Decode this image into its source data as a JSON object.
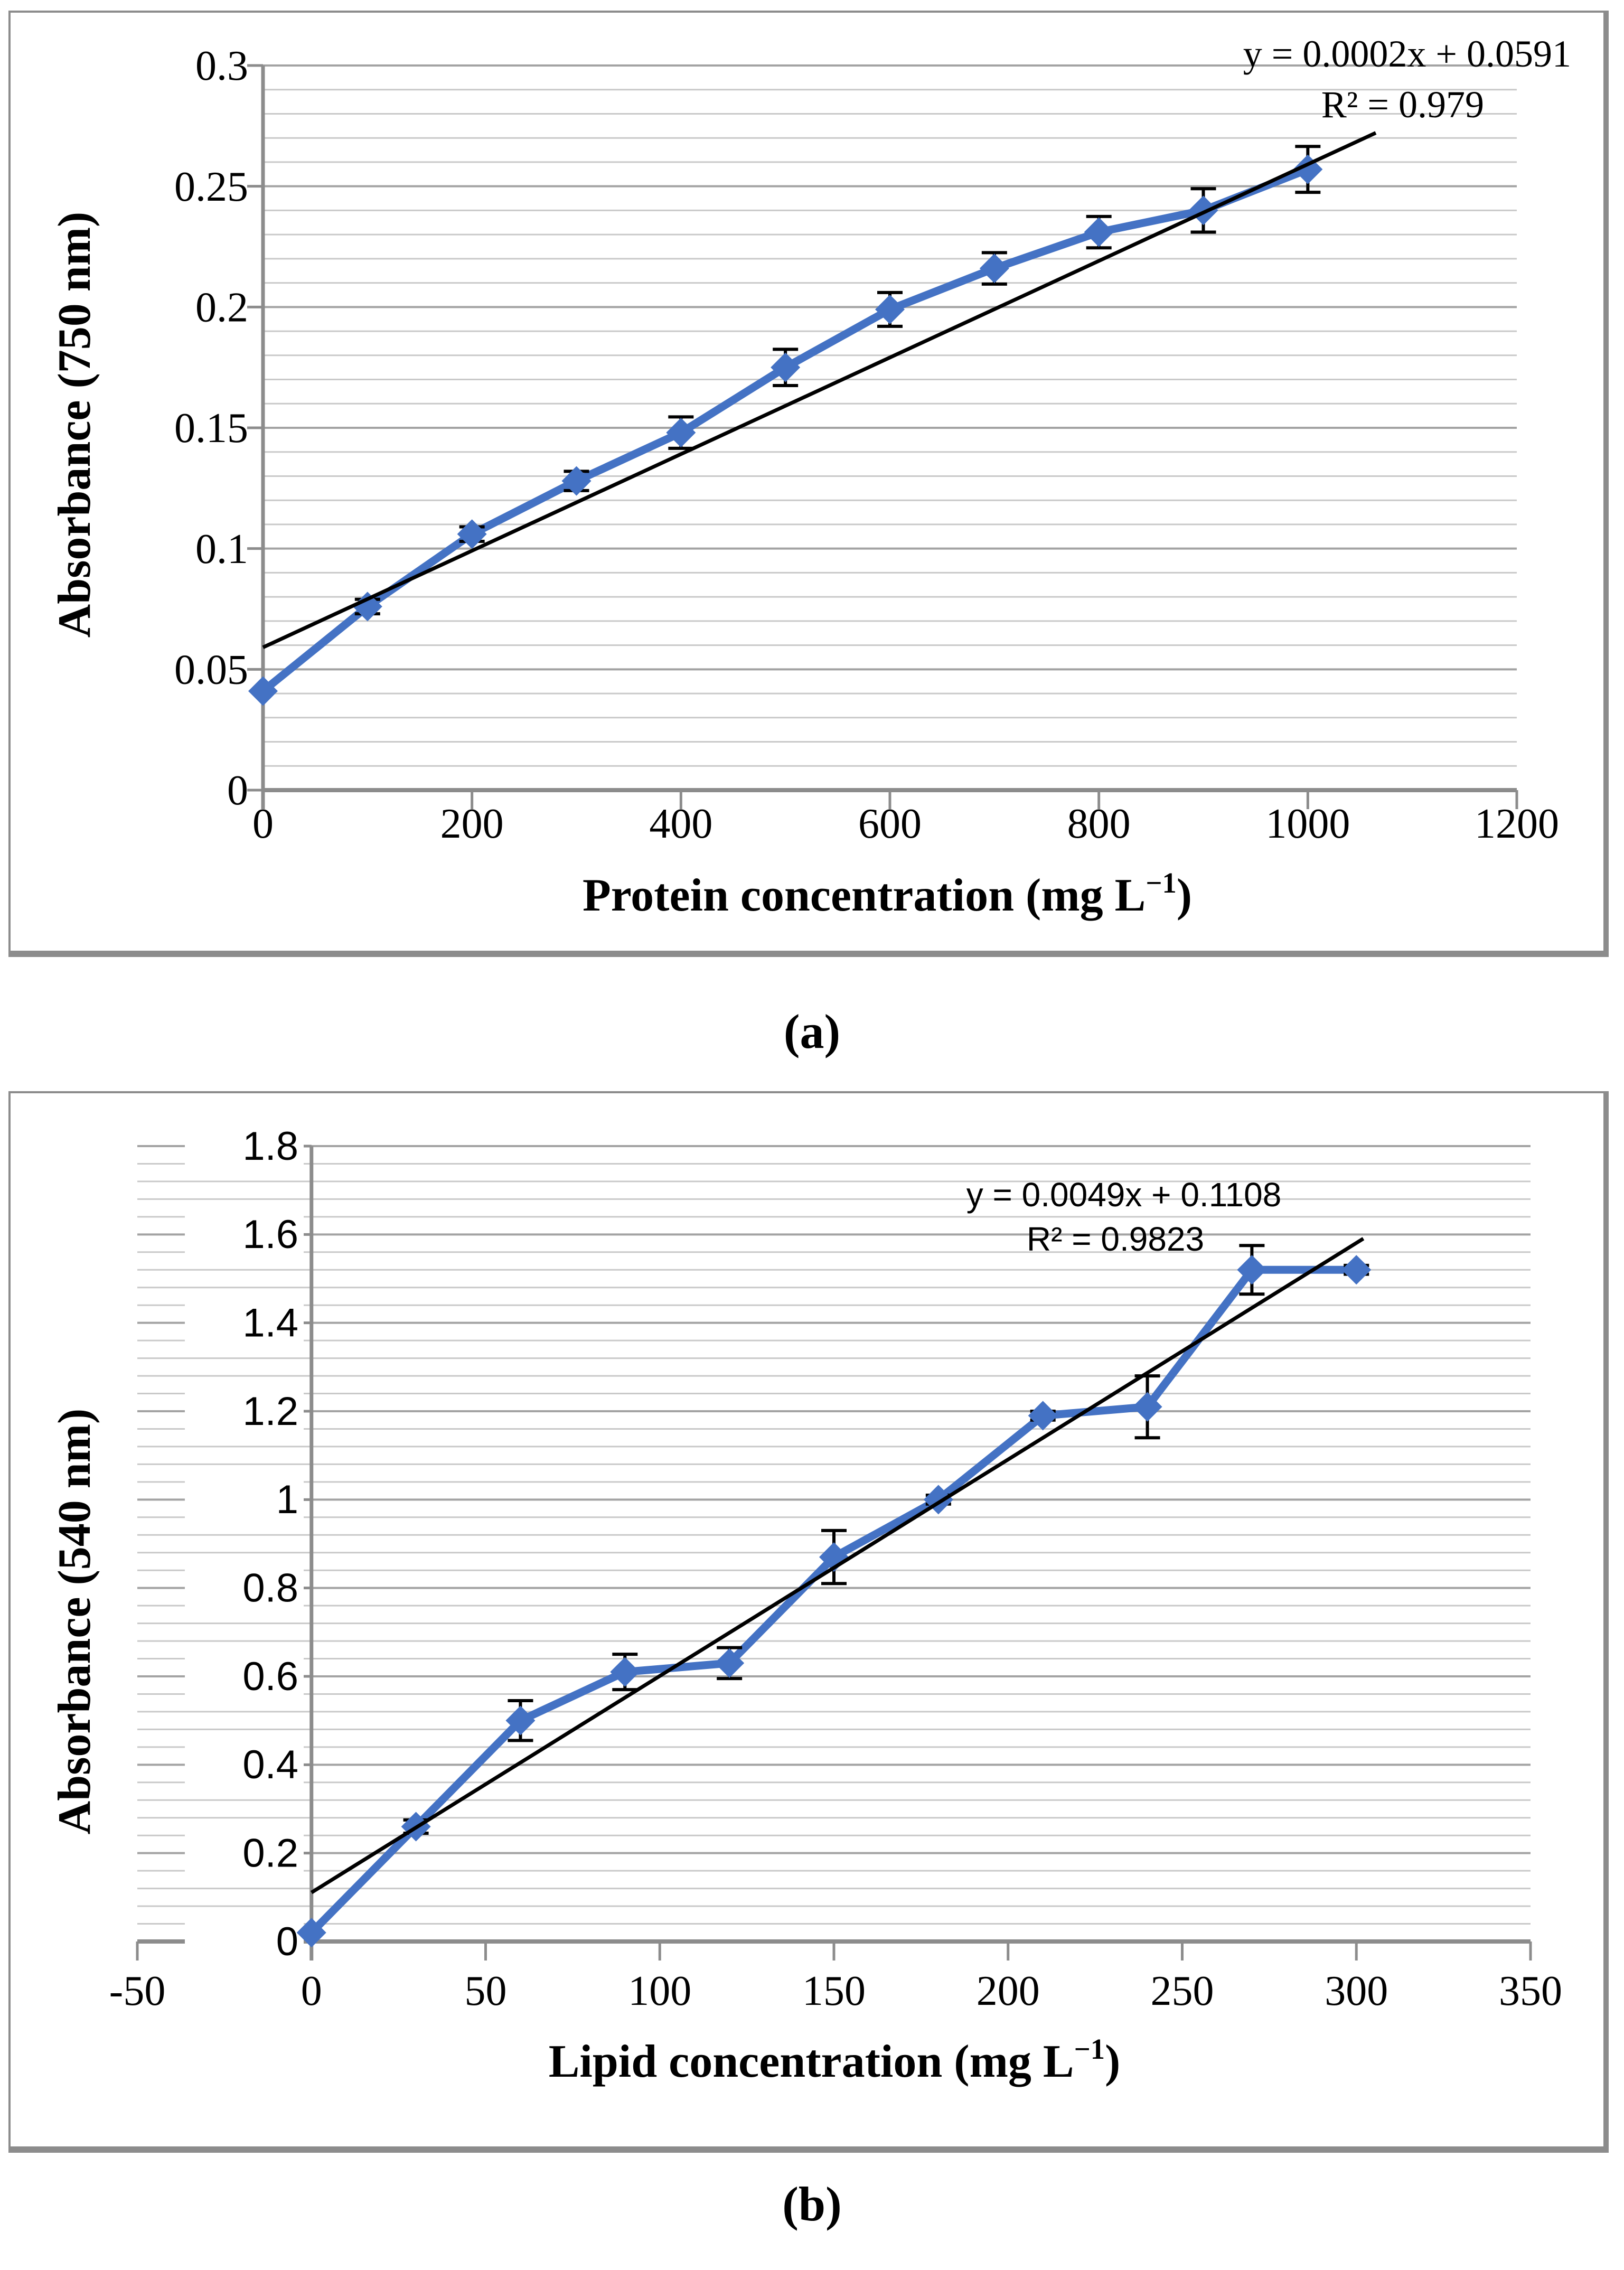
{
  "figure": {
    "caption_a": "(a)",
    "caption_b": "(b)"
  },
  "colors": {
    "series_blue": "#4472C4",
    "trendline_black": "#000000",
    "error_bar_black": "#000000",
    "grid_major": "#a3a3a3",
    "grid_minor": "#c9c9c9",
    "axis_line": "#8c8c8c",
    "panel_border": "#8c8c8c",
    "text_black": "#000000",
    "label_background": "#ffffff"
  },
  "chart_data": [
    {
      "type": "line",
      "marker": "diamond",
      "series_name": "protein-calibration",
      "xlabel": "Protein concentration (mg L⁻¹)",
      "ylabel": "Absorbance (750 nm)",
      "equation_line1": "y = 0.0002x + 0.0591",
      "equation_line2": "R² = 0.979",
      "x": [
        0,
        100,
        200,
        300,
        400,
        500,
        600,
        700,
        800,
        900,
        1000
      ],
      "y": [
        0.041,
        0.076,
        0.106,
        0.128,
        0.148,
        0.175,
        0.199,
        0.216,
        0.231,
        0.24,
        0.257
      ],
      "yerr": [
        0,
        0.003,
        0.003,
        0.004,
        0.0065,
        0.0075,
        0.007,
        0.0065,
        0.0065,
        0.009,
        0.0095
      ],
      "trendline": {
        "slope": 0.0002,
        "intercept": 0.0591,
        "x_start": 0,
        "x_end": 1065
      },
      "xlim": [
        0,
        1200
      ],
      "ylim": [
        0,
        0.3
      ],
      "x_tick_step": 200,
      "y_tick_step": 0.05,
      "y_minor_step": 0.01,
      "x_tick_labels": [
        "0",
        "200",
        "400",
        "600",
        "800",
        "1000",
        "1200"
      ],
      "y_tick_labels": [
        "0",
        "0.05",
        "0.1",
        "0.15",
        "0.2",
        "0.25",
        "0.3"
      ],
      "grid": "horizontal-only",
      "legend": "none"
    },
    {
      "type": "line",
      "marker": "diamond",
      "series_name": "lipid-calibration",
      "xlabel": "Lipid concentration (mg L⁻¹)",
      "ylabel": "Absorbance  (540 nm)",
      "equation_line1": "y = 0.0049x + 0.1108",
      "equation_line2": "R² = 0.9823",
      "x": [
        0,
        30,
        60,
        90,
        120,
        150,
        180,
        210,
        240,
        270,
        300
      ],
      "y": [
        0.02,
        0.26,
        0.5,
        0.61,
        0.63,
        0.87,
        1.0,
        1.19,
        1.21,
        1.52,
        1.52
      ],
      "yerr": [
        0,
        0.015,
        0.045,
        0.04,
        0.035,
        0.06,
        0.01,
        0.01,
        0.07,
        0.055,
        0.01
      ],
      "trendline": {
        "slope": 0.0049,
        "intercept": 0.1108,
        "x_start": 0,
        "x_end": 302
      },
      "xlim": [
        -50,
        350
      ],
      "ylim": [
        0,
        1.8
      ],
      "x_tick_step": 50,
      "y_tick_step": 0.2,
      "y_minor_step": 0.04,
      "x_tick_labels": [
        "-50",
        "0",
        "50",
        "100",
        "150",
        "200",
        "250",
        "300",
        "350"
      ],
      "y_tick_labels": [
        "0",
        "0.2",
        "0.4",
        "0.6",
        "0.8",
        "1",
        "1.2",
        "1.4",
        "1.6",
        "1.8"
      ],
      "grid": "horizontal-only",
      "legend": "none"
    }
  ]
}
